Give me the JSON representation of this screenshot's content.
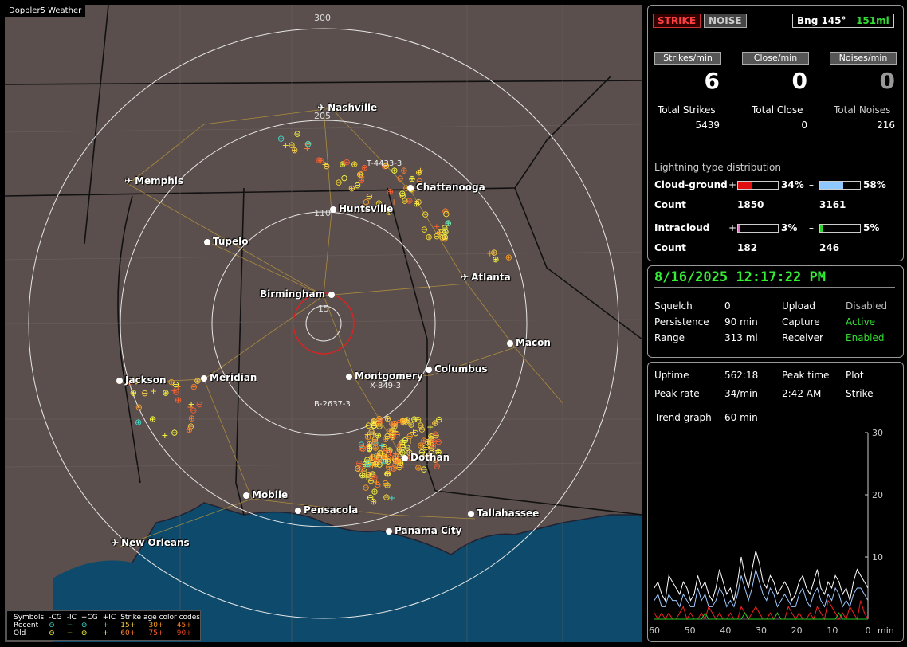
{
  "app": {
    "brand": "Doppler5 Weather"
  },
  "map": {
    "ring_labels": [
      "300",
      "205",
      "110",
      "15"
    ],
    "cities": [
      {
        "name": "Nashville",
        "kind": "airport"
      },
      {
        "name": "Memphis",
        "kind": "airport"
      },
      {
        "name": "Chattanooga",
        "kind": "city"
      },
      {
        "name": "Huntsville",
        "kind": "city"
      },
      {
        "name": "Tupelo",
        "kind": "city"
      },
      {
        "name": "Atlanta",
        "kind": "airport"
      },
      {
        "name": "Birmingham",
        "kind": "city"
      },
      {
        "name": "Macon",
        "kind": "city"
      },
      {
        "name": "Jackson",
        "kind": "city"
      },
      {
        "name": "Meridian",
        "kind": "city"
      },
      {
        "name": "Montgomery",
        "kind": "city"
      },
      {
        "name": "Columbus",
        "kind": "city"
      },
      {
        "name": "Dothan",
        "kind": "city"
      },
      {
        "name": "Mobile",
        "kind": "city"
      },
      {
        "name": "Pensacola",
        "kind": "city"
      },
      {
        "name": "Tallahassee",
        "kind": "city"
      },
      {
        "name": "Panama City",
        "kind": "city"
      },
      {
        "name": "New Orleans",
        "kind": "airport"
      }
    ],
    "track_labels": [
      "T-4433-3",
      "X-849-3",
      "B-2637-3"
    ]
  },
  "legend": {
    "headers": [
      "Symbols",
      "-CG",
      "-IC",
      "+CG",
      "+IC",
      "Strike age color codes"
    ],
    "recent": {
      "label": "Recent",
      "ages": [
        "15+",
        "30+",
        "45+"
      ]
    },
    "old": {
      "label": "Old",
      "ages": [
        "60+",
        "75+",
        "90+"
      ]
    }
  },
  "stats": {
    "strike_btn": "STRIKE",
    "noise_btn": "NOISE",
    "bearing": "Bng 145°",
    "distance": "151mi",
    "headers": [
      "Strikes/min",
      "Close/min",
      "Noises/min"
    ],
    "values": [
      "6",
      "0",
      "0"
    ],
    "total_labels": [
      "Total Strikes",
      "Total Close",
      "Total Noises"
    ],
    "totals": [
      "5439",
      "0",
      "216"
    ],
    "distribution_title": "Lightning type distribution",
    "cloud_ground": {
      "label": "Cloud-ground",
      "pos_pct": "34%",
      "neg_pct": "58%",
      "pos_count": "1850",
      "neg_count": "3161",
      "pos_frac": 0.34,
      "neg_frac": 0.58
    },
    "intracloud": {
      "label": "Intracloud",
      "pos_pct": "3%",
      "neg_pct": "5%",
      "pos_count": "182",
      "neg_count": "246",
      "pos_frac": 0.03,
      "neg_frac": 0.05
    },
    "count_label": "Count",
    "plus": "+",
    "minus": "–"
  },
  "status": {
    "datetime": "8/16/2025 12:17:22 PM",
    "rows": [
      {
        "k1": "Squelch",
        "v1": "0",
        "k2": "Upload",
        "v2": "Disabled",
        "v2_color": "#bbbbbb"
      },
      {
        "k1": "Persistence",
        "v1": "90 min",
        "k2": "Capture",
        "v2": "Active",
        "v2_color": "#33dd33"
      },
      {
        "k1": "Range",
        "v1": "313 mi",
        "k2": "Receiver",
        "v2": "Enabled",
        "v2_color": "#33dd33"
      }
    ]
  },
  "trend": {
    "uptime_label": "Uptime",
    "uptime": "562:18",
    "peak_time_label": "Peak time",
    "peak_time": "2:42 AM",
    "plot_label": "Plot",
    "peak_rate_label": "Peak rate",
    "peak_rate": "34/min",
    "plot_value": "Strike",
    "trend_label": "Trend graph",
    "trend_value": "60 min",
    "y_ticks": [
      "30",
      "20",
      "10"
    ],
    "x_ticks": [
      "60",
      "50",
      "40",
      "30",
      "20",
      "10",
      "0"
    ],
    "x_unit": "min",
    "chart_data": {
      "type": "line",
      "x_range": [
        60,
        0
      ],
      "ylim": [
        0,
        30
      ],
      "series": [
        {
          "color": "#ffffff",
          "values": [
            5,
            6,
            4,
            3,
            7,
            6,
            5,
            4,
            6,
            5,
            3,
            4,
            7,
            5,
            6,
            4,
            3,
            5,
            8,
            6,
            4,
            5,
            3,
            6,
            10,
            7,
            5,
            8,
            11,
            9,
            6,
            5,
            7,
            6,
            4,
            5,
            6,
            5,
            3,
            4,
            6,
            7,
            5,
            4,
            6,
            8,
            5,
            4,
            6,
            5,
            7,
            6,
            4,
            5,
            3,
            6,
            8,
            7,
            6,
            5
          ]
        },
        {
          "color": "#9fc8ff",
          "values": [
            3,
            4,
            2,
            2,
            4,
            3,
            3,
            2,
            4,
            3,
            2,
            2,
            5,
            3,
            4,
            2,
            2,
            3,
            5,
            4,
            2,
            3,
            2,
            4,
            7,
            5,
            3,
            5,
            8,
            6,
            4,
            3,
            5,
            4,
            2,
            3,
            4,
            3,
            2,
            2,
            4,
            5,
            3,
            2,
            4,
            5,
            3,
            2,
            4,
            3,
            5,
            4,
            2,
            3,
            2,
            4,
            5,
            5,
            4,
            3
          ]
        },
        {
          "color": "#ee2222",
          "values": [
            1,
            0,
            1,
            0,
            1,
            0,
            0,
            1,
            2,
            0,
            1,
            0,
            0,
            1,
            0,
            2,
            1,
            0,
            1,
            0,
            0,
            1,
            0,
            0,
            2,
            1,
            0,
            1,
            2,
            1,
            0,
            0,
            1,
            0,
            1,
            0,
            0,
            2,
            1,
            0,
            1,
            0,
            0,
            1,
            0,
            2,
            1,
            0,
            3,
            2,
            1,
            0,
            1,
            0,
            2,
            1,
            0,
            3,
            1,
            0
          ]
        },
        {
          "color": "#22cc22",
          "values": [
            0,
            0,
            0,
            0,
            0,
            0,
            0,
            0,
            0,
            0,
            0,
            0,
            0,
            0,
            1,
            0,
            0,
            0,
            0,
            0,
            0,
            0,
            0,
            0,
            0,
            1,
            0,
            0,
            0,
            0,
            0,
            0,
            0,
            0,
            1,
            0,
            0,
            0,
            0,
            0,
            0,
            0,
            0,
            0,
            0,
            0,
            0,
            0,
            0,
            0,
            0,
            1,
            0,
            0,
            0,
            0,
            0,
            0,
            0,
            0
          ]
        }
      ]
    }
  }
}
